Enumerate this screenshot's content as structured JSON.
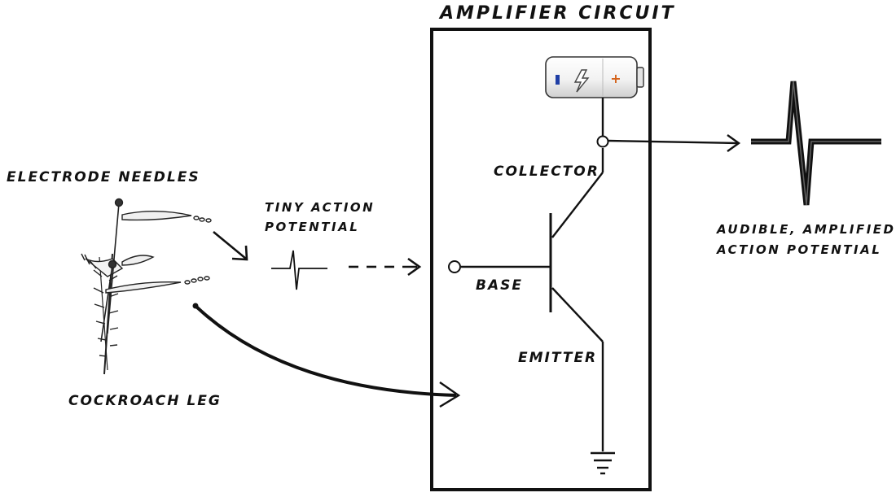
{
  "title": "Amplifier Circuit",
  "labels": {
    "electrode_needles": "Electrode needles",
    "cockroach_leg": "Cockroach leg",
    "tiny_action_potential_line1": "tiny action",
    "tiny_action_potential_line2": "potential",
    "collector": "Collector",
    "base": "Base",
    "emitter": "Emitter",
    "audible_line1": "audible, amplified",
    "audible_line2": "action potential"
  },
  "battery": {
    "negative_symbol": "-",
    "positive_symbol": "+",
    "icon": "lightning-bolt-icon",
    "terminal_colors": {
      "negative": "#1f3fa6",
      "positive": "#d4621a"
    }
  }
}
